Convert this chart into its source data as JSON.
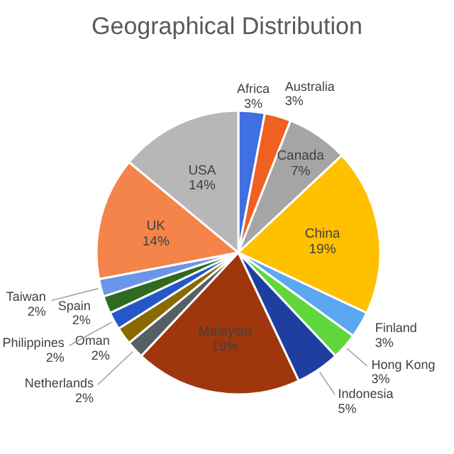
{
  "chart_data": {
    "type": "pie",
    "title": "Geographical Distribution",
    "categories": [
      "Africa",
      "Australia",
      "Canada",
      "China",
      "Finland",
      "Hong Kong",
      "Indonesia",
      "Malaysia",
      "Netherlands",
      "Oman",
      "Philippines",
      "Spain",
      "Taiwan",
      "UK",
      "USA"
    ],
    "values": [
      3,
      3,
      7,
      19,
      3,
      3,
      5,
      19,
      2,
      2,
      2,
      2,
      2,
      14,
      14
    ],
    "colors": [
      "#3f6fe0",
      "#f06020",
      "#a5a5a5",
      "#ffc000",
      "#5ba8f0",
      "#5fd63a",
      "#1f3fa0",
      "#a0360c",
      "#555f66",
      "#8a6a00",
      "#2657c8",
      "#2f6a1e",
      "#6a96e8",
      "#f5844a",
      "#b7b7b7"
    ],
    "value_labels": [
      "3%",
      "3%",
      "7%",
      "19%",
      "3%",
      "3%",
      "5%",
      "19%",
      "2%",
      "2%",
      "2%",
      "2%",
      "2%",
      "14%",
      "14%"
    ]
  }
}
